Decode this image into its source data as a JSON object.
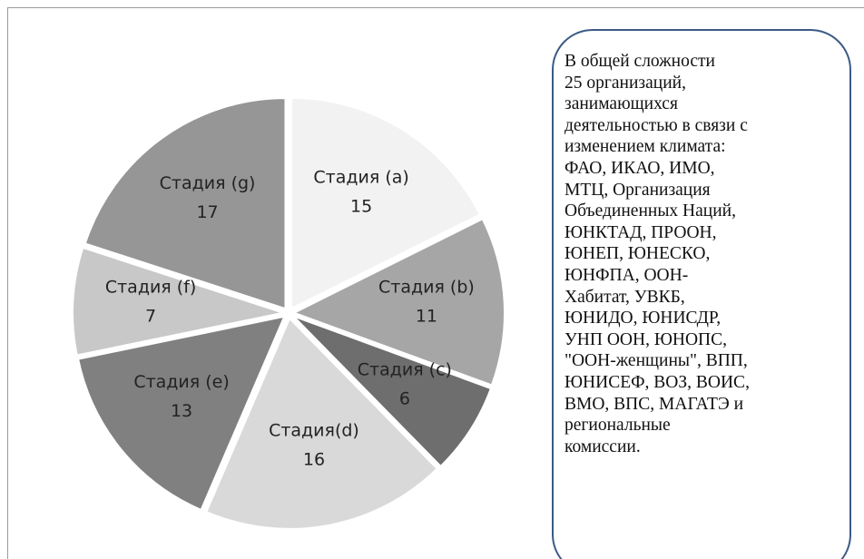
{
  "chart_data": {
    "type": "pie",
    "categories": [
      "Стадия (a)",
      "Стадия (b)",
      "Стадия (c)",
      "Стадия(d)",
      "Стадия (e)",
      "Стадия (f)",
      "Стадия (g)"
    ],
    "values": [
      15,
      11,
      6,
      16,
      13,
      7,
      17
    ],
    "colors": [
      "#f2f2f2",
      "#a6a6a6",
      "#6e6e6e",
      "#d9d9d9",
      "#808080",
      "#c8c8c8",
      "#969696"
    ],
    "annotation": [
      "В общей сложности",
      "25 организаций,",
      "занимающихся",
      "деятельностью в связи с",
      "изменением климата:",
      "ФАО, ИКАО, ИМО,",
      "МТЦ, Организация",
      "Объединенных Наций,",
      "ЮНКТАД, ПРООН,",
      "ЮНЕП, ЮНЕСКО,",
      "ЮНФПА, ООН-",
      "Хабитат, УВКБ,",
      "ЮНИДО, ЮНИСДР,",
      "УНП ООН, ЮНОПС,",
      "\"ООН-женщины\", ВПП,",
      "ЮНИСЕФ, ВОЗ, ВОИС,",
      "ВМО, ВПС, МАГАТЭ и",
      "региональные",
      "комиссии."
    ]
  }
}
